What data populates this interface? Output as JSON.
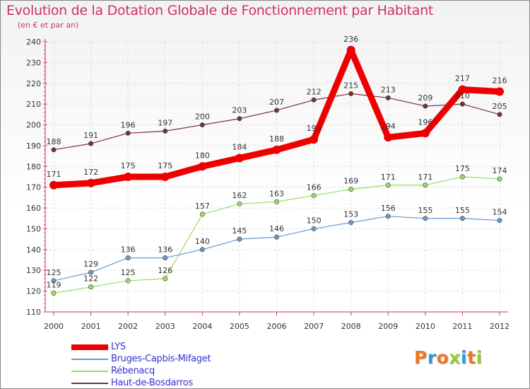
{
  "chart_data": {
    "type": "line",
    "title": "Evolution de la Dotation Globale de Fonctionnement par Habitant",
    "subtitle": "(en € et par an)",
    "xlabel": "",
    "ylabel": "",
    "x": [
      "2000",
      "2001",
      "2002",
      "2003",
      "2004",
      "2005",
      "2006",
      "2007",
      "2008",
      "2009",
      "2010",
      "2011",
      "2012"
    ],
    "yticks": [
      "110",
      "120",
      "130",
      "140",
      "150",
      "160",
      "170",
      "180",
      "190",
      "200",
      "210",
      "220",
      "230",
      "240"
    ],
    "ylim": [
      110,
      240
    ],
    "grid": true,
    "legend_position": "bottom-left",
    "series": [
      {
        "name": "LYS",
        "color": "#ee0000",
        "values": [
          171,
          172,
          175,
          175,
          180,
          184,
          188,
          193,
          236,
          194,
          196,
          217,
          216
        ],
        "labels": [
          "171",
          "172",
          "175",
          "175",
          "180",
          "184",
          "188",
          "193",
          "236",
          "194",
          "196",
          "217",
          "216"
        ]
      },
      {
        "name": "Bruges-Capbis-Mifaget",
        "color": "#6699cc",
        "values": [
          125,
          129,
          136,
          136,
          140,
          145,
          146,
          150,
          153,
          156,
          155,
          155,
          154
        ],
        "labels": [
          "125",
          "129",
          "136",
          "136",
          "140",
          "145",
          "146",
          "150",
          "153",
          "156",
          "155",
          "155",
          "154"
        ]
      },
      {
        "name": "Rébenacq",
        "color": "#99dd66",
        "values": [
          119,
          122,
          125,
          126,
          157,
          162,
          163,
          166,
          169,
          171,
          171,
          175,
          174
        ],
        "labels": [
          "119",
          "122",
          "125",
          "126",
          "157",
          "162",
          "163",
          "166",
          "169",
          "171",
          "171",
          "175",
          "174"
        ]
      },
      {
        "name": "Haut-de-Bosdarros",
        "color": "#773333",
        "values": [
          188,
          191,
          196,
          197,
          200,
          203,
          207,
          212,
          215,
          213,
          209,
          210,
          205
        ],
        "labels": [
          "188",
          "191",
          "196",
          "197",
          "200",
          "203",
          "207",
          "212",
          "215",
          "213",
          "209",
          "210",
          "205"
        ]
      }
    ]
  },
  "logo": {
    "letters": [
      "P",
      "r",
      "o",
      "x",
      "i",
      "t",
      "i"
    ],
    "colors": [
      "#ee7722",
      "#3399dd",
      "#ee7722",
      "#99cc33",
      "#3399dd",
      "#ee7722",
      "#99cc33"
    ]
  }
}
